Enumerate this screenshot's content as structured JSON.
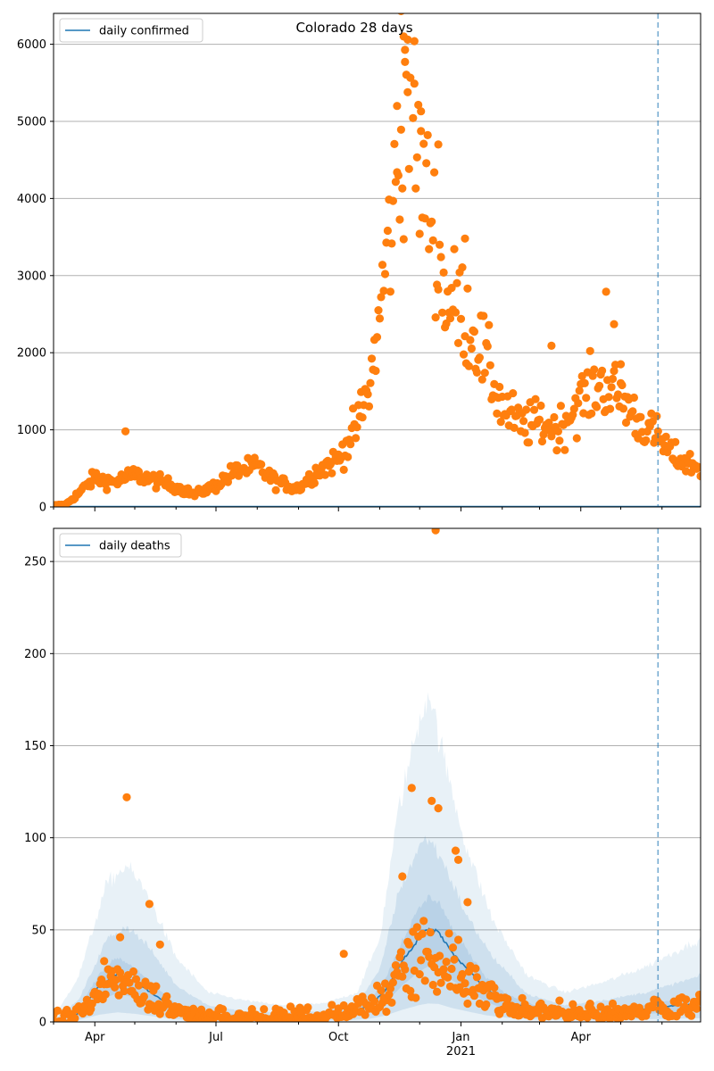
{
  "colors": {
    "line": "#1f77b4",
    "points": "#ff7f0e",
    "band": "#1f77b4",
    "grid": "#b0b0b0",
    "vline": "#1f77b4"
  },
  "chart_data": [
    {
      "type": "scatter",
      "title": "Colorado 28 days",
      "legend": {
        "label": "daily confirmed",
        "placement": "top-left"
      },
      "xlabel": "",
      "ylabel": "",
      "xlim": [
        "2020-03-01",
        "2021-06-30"
      ],
      "ylim": [
        0,
        6400
      ],
      "yticks": [
        0,
        1000,
        2000,
        3000,
        4000,
        5000,
        6000
      ],
      "grid": "horizontal",
      "vline_date": "2021-05-29",
      "anchors": [
        [
          "2020-03-01",
          20
        ],
        [
          "2020-03-10",
          30
        ],
        [
          "2020-03-20",
          180
        ],
        [
          "2020-04-01",
          380
        ],
        [
          "2020-04-15",
          320
        ],
        [
          "2020-05-01",
          420
        ],
        [
          "2020-05-15",
          350
        ],
        [
          "2020-06-01",
          260
        ],
        [
          "2020-06-15",
          160
        ],
        [
          "2020-07-01",
          280
        ],
        [
          "2020-07-15",
          460
        ],
        [
          "2020-08-01",
          520
        ],
        [
          "2020-08-15",
          330
        ],
        [
          "2020-09-01",
          240
        ],
        [
          "2020-09-15",
          470
        ],
        [
          "2020-10-01",
          620
        ],
        [
          "2020-10-15",
          1050
        ],
        [
          "2020-10-25",
          1600
        ],
        [
          "2020-11-01",
          2500
        ],
        [
          "2020-11-08",
          3500
        ],
        [
          "2020-11-15",
          4300
        ],
        [
          "2020-11-22",
          5600
        ],
        [
          "2020-12-01",
          4300
        ],
        [
          "2020-12-10",
          3800
        ],
        [
          "2020-12-20",
          2700
        ],
        [
          "2021-01-01",
          2600
        ],
        [
          "2021-01-15",
          2100
        ],
        [
          "2021-02-01",
          1300
        ],
        [
          "2021-02-15",
          1050
        ],
        [
          "2021-03-01",
          1100
        ],
        [
          "2021-03-15",
          1000
        ],
        [
          "2021-04-01",
          1400
        ],
        [
          "2021-04-15",
          1600
        ],
        [
          "2021-05-01",
          1450
        ],
        [
          "2021-05-15",
          1100
        ],
        [
          "2021-05-29",
          900
        ],
        [
          "2021-06-10",
          650
        ],
        [
          "2021-06-30",
          500
        ]
      ],
      "outliers": [
        [
          "2020-04-24",
          980
        ],
        [
          "2020-11-17",
          6430
        ],
        [
          "2020-11-19",
          6100
        ],
        [
          "2020-11-22",
          6060
        ],
        [
          "2020-11-27",
          6040
        ],
        [
          "2020-11-20",
          5770
        ],
        [
          "2020-12-02",
          5130
        ],
        [
          "2020-11-14",
          5200
        ],
        [
          "2021-04-20",
          2790
        ],
        [
          "2021-04-26",
          2370
        ],
        [
          "2021-03-10",
          2090
        ],
        [
          "2021-01-04",
          3480
        ],
        [
          "2020-12-15",
          4700
        ],
        [
          "2021-05-01",
          1850
        ]
      ]
    },
    {
      "type": "line",
      "title": "",
      "legend": {
        "label": "daily deaths",
        "placement": "top-left"
      },
      "xlabel": "",
      "ylabel": "",
      "xlim": [
        "2020-03-01",
        "2021-06-30"
      ],
      "ylim": [
        0,
        268
      ],
      "yticks": [
        0,
        50,
        100,
        150,
        200,
        250
      ],
      "xticks": [
        "Apr",
        "Jul",
        "Oct",
        "Jan\n2021",
        "Apr"
      ],
      "grid": "horizontal",
      "vline_date": "2021-05-29",
      "line_anchors": [
        [
          "2020-03-01",
          0
        ],
        [
          "2020-03-15",
          1
        ],
        [
          "2020-03-25",
          10
        ],
        [
          "2020-04-05",
          20
        ],
        [
          "2020-04-18",
          26
        ],
        [
          "2020-05-01",
          22
        ],
        [
          "2020-05-15",
          15
        ],
        [
          "2020-06-01",
          7
        ],
        [
          "2020-06-20",
          4
        ],
        [
          "2020-07-15",
          3
        ],
        [
          "2020-08-15",
          2
        ],
        [
          "2020-09-15",
          3
        ],
        [
          "2020-10-10",
          5
        ],
        [
          "2020-10-25",
          9
        ],
        [
          "2020-11-05",
          17
        ],
        [
          "2020-11-18",
          33
        ],
        [
          "2020-11-30",
          45
        ],
        [
          "2020-12-07",
          50
        ],
        [
          "2020-12-15",
          49
        ],
        [
          "2020-12-25",
          38
        ],
        [
          "2021-01-08",
          27
        ],
        [
          "2021-01-20",
          18
        ],
        [
          "2021-02-05",
          11
        ],
        [
          "2021-03-01",
          6
        ],
        [
          "2021-04-01",
          4
        ],
        [
          "2021-05-01",
          5
        ],
        [
          "2021-05-29",
          8
        ],
        [
          "2021-06-30",
          10
        ]
      ],
      "band_outer": [
        [
          "2020-03-01",
          2
        ],
        [
          "2020-03-20",
          25
        ],
        [
          "2020-04-10",
          75
        ],
        [
          "2020-04-25",
          85
        ],
        [
          "2020-05-10",
          70
        ],
        [
          "2020-06-01",
          35
        ],
        [
          "2020-06-25",
          16
        ],
        [
          "2020-07-20",
          12
        ],
        [
          "2020-08-20",
          9
        ],
        [
          "2020-09-20",
          10
        ],
        [
          "2020-10-15",
          16
        ],
        [
          "2020-11-01",
          45
        ],
        [
          "2020-11-15",
          115
        ],
        [
          "2020-12-01",
          165
        ],
        [
          "2020-12-08",
          180
        ],
        [
          "2020-12-20",
          140
        ],
        [
          "2021-01-05",
          95
        ],
        [
          "2021-01-25",
          55
        ],
        [
          "2021-02-20",
          25
        ],
        [
          "2021-03-20",
          16
        ],
        [
          "2021-04-20",
          22
        ],
        [
          "2021-05-20",
          30
        ],
        [
          "2021-06-30",
          45
        ]
      ],
      "band_inner": [
        [
          "2020-03-01",
          1
        ],
        [
          "2020-03-20",
          12
        ],
        [
          "2020-04-10",
          45
        ],
        [
          "2020-04-25",
          52
        ],
        [
          "2020-05-10",
          42
        ],
        [
          "2020-06-01",
          20
        ],
        [
          "2020-06-25",
          9
        ],
        [
          "2020-07-20",
          6
        ],
        [
          "2020-08-20",
          5
        ],
        [
          "2020-09-20",
          6
        ],
        [
          "2020-10-15",
          10
        ],
        [
          "2020-11-01",
          28
        ],
        [
          "2020-11-15",
          70
        ],
        [
          "2020-12-01",
          96
        ],
        [
          "2020-12-08",
          100
        ],
        [
          "2020-12-20",
          85
        ],
        [
          "2021-01-05",
          58
        ],
        [
          "2021-01-25",
          35
        ],
        [
          "2021-02-20",
          15
        ],
        [
          "2021-03-20",
          9
        ],
        [
          "2021-04-20",
          12
        ],
        [
          "2021-05-20",
          16
        ],
        [
          "2021-06-30",
          25
        ]
      ],
      "outliers": [
        [
          "2020-04-25",
          122
        ],
        [
          "2020-12-13",
          267
        ],
        [
          "2020-11-25",
          127
        ],
        [
          "2020-12-10",
          120
        ],
        [
          "2020-12-15",
          116
        ],
        [
          "2020-05-12",
          64
        ],
        [
          "2020-10-05",
          37
        ],
        [
          "2020-11-18",
          79
        ],
        [
          "2020-12-28",
          93
        ],
        [
          "2020-12-30",
          88
        ],
        [
          "2021-01-06",
          65
        ],
        [
          "2020-04-20",
          46
        ],
        [
          "2020-04-08",
          33
        ],
        [
          "2020-05-20",
          42
        ]
      ]
    }
  ]
}
